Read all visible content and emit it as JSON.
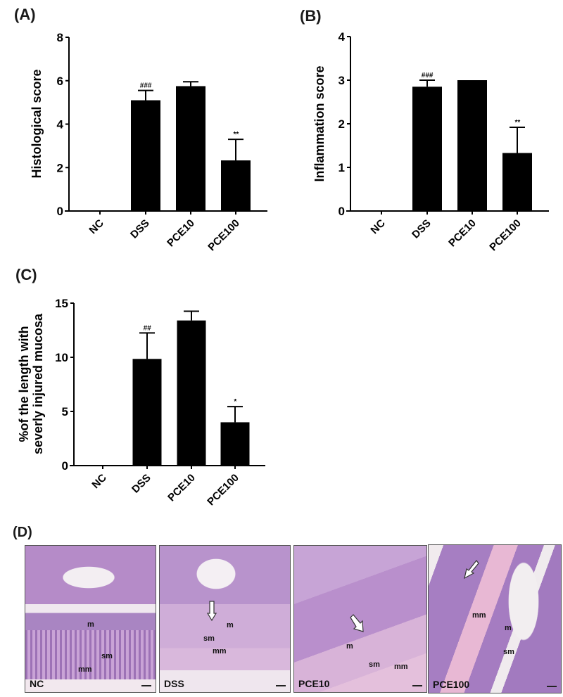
{
  "chart_data": [
    {
      "panel": "(A)",
      "type": "bar",
      "title": "",
      "xlabel": "",
      "ylabel": "Histological score",
      "categories": [
        "NC",
        "DSS",
        "PCE10",
        "PCE100"
      ],
      "values": [
        0,
        5.1,
        5.75,
        2.33
      ],
      "error_upper": [
        0,
        5.55,
        5.95,
        3.3
      ],
      "annotations": [
        "",
        "###",
        "",
        "**"
      ],
      "ylim": [
        0,
        8
      ],
      "yticks": [
        0,
        2,
        4,
        6,
        8
      ],
      "grid": false,
      "legend": null,
      "bar_color": "#000000"
    },
    {
      "panel": "(B)",
      "type": "bar",
      "title": "",
      "xlabel": "",
      "ylabel": "Inflammation score",
      "categories": [
        "NC",
        "DSS",
        "PCE10",
        "PCE100"
      ],
      "values": [
        0,
        2.85,
        3.0,
        1.33
      ],
      "error_upper": [
        0,
        3.0,
        3.0,
        1.92
      ],
      "annotations": [
        "",
        "###",
        "",
        "**"
      ],
      "ylim": [
        0,
        4
      ],
      "yticks": [
        0,
        1,
        2,
        3,
        4
      ],
      "grid": false,
      "legend": null,
      "bar_color": "#000000"
    },
    {
      "panel": "(C)",
      "type": "bar",
      "title": "",
      "xlabel": "",
      "ylabel": "%of the length with severly injured mucosa",
      "ylabel_lines": [
        "%of the length with",
        "severly injured mucosa"
      ],
      "categories": [
        "NC",
        "DSS",
        "PCE10",
        "PCE100"
      ],
      "values": [
        0,
        9.85,
        13.4,
        4.0
      ],
      "error_upper": [
        0,
        12.25,
        14.25,
        5.45
      ],
      "annotations": [
        "",
        "##",
        "",
        "*"
      ],
      "ylim": [
        0,
        15
      ],
      "yticks": [
        0,
        5,
        10,
        15
      ],
      "grid": false,
      "legend": null,
      "bar_color": "#000000"
    }
  ],
  "panels": {
    "a": {
      "label": "(A)"
    },
    "b": {
      "label": "(B)"
    },
    "c": {
      "label": "(C)"
    },
    "d": {
      "label": "(D)"
    }
  },
  "histology": {
    "images": [
      {
        "tag": "NC",
        "labels": [
          "m",
          "sm",
          "mm"
        ]
      },
      {
        "tag": "DSS",
        "labels": [
          "m",
          "sm",
          "mm"
        ]
      },
      {
        "tag": "PCE10",
        "labels": [
          "m",
          "sm",
          "mm"
        ]
      },
      {
        "tag": "PCE100",
        "labels": [
          "mm",
          "m",
          "sm"
        ]
      }
    ]
  }
}
